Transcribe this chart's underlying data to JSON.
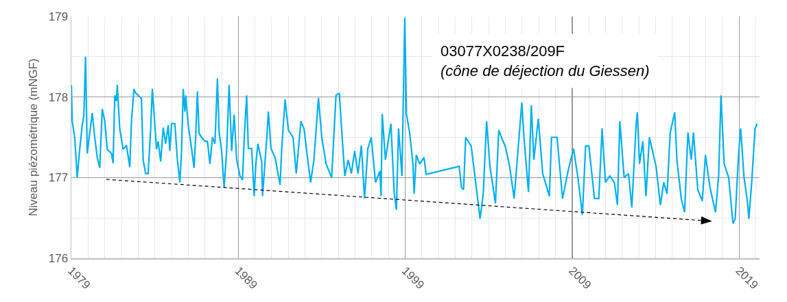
{
  "chart_data": {
    "type": "line",
    "ylabel": "Niveau piézométrique (mNGF)",
    "annotations": [
      "03077X0238/209F",
      "(cône de déjection du Giessen)"
    ],
    "xlim": [
      1979,
      2020.22
    ],
    "xticks": [
      1979,
      1989,
      1999,
      2009,
      2019
    ],
    "ylim": [
      176,
      179
    ],
    "yticks": [
      176,
      177,
      178,
      179
    ],
    "grid": true,
    "marker": "none",
    "line_style": "solid",
    "series": [
      {
        "color": "#00b0f0",
        "x": [
          1979.0,
          1979.05,
          1979.2,
          1979.35,
          1979.5,
          1979.65,
          1979.75,
          1979.85,
          1979.95,
          1980.1,
          1980.25,
          1980.4,
          1980.55,
          1980.7,
          1980.85,
          1981.0,
          1981.15,
          1981.4,
          1981.5,
          1981.6,
          1981.7,
          1981.75,
          1981.9,
          1982.1,
          1982.3,
          1982.5,
          1982.6,
          1982.75,
          1982.85,
          1983.2,
          1983.3,
          1983.45,
          1983.6,
          1983.75,
          1983.85,
          1983.95,
          1984.1,
          1984.2,
          1984.35,
          1984.5,
          1984.65,
          1984.8,
          1984.9,
          1985.0,
          1985.2,
          1985.35,
          1985.5,
          1985.6,
          1985.7,
          1985.8,
          1985.85,
          1986.0,
          1986.2,
          1986.35,
          1986.45,
          1986.55,
          1986.65,
          1986.8,
          1987.0,
          1987.15,
          1987.3,
          1987.45,
          1987.6,
          1987.75,
          1987.85,
          1988.0,
          1988.15,
          1988.3,
          1988.45,
          1988.6,
          1988.75,
          1988.9,
          1989.1,
          1989.25,
          1989.35,
          1989.5,
          1989.6,
          1989.8,
          1989.95,
          1990.05,
          1990.17,
          1990.4,
          1990.45,
          1990.7,
          1990.8,
          1990.96,
          1991.2,
          1991.5,
          1991.6,
          1991.8,
          1992.0,
          1992.28,
          1992.47,
          1992.75,
          1992.94,
          1993.14,
          1993.33,
          1993.53,
          1993.8,
          1994.0,
          1994.26,
          1994.59,
          1994.85,
          1995.05,
          1995.18,
          1995.38,
          1995.58,
          1995.77,
          1995.97,
          1996.17,
          1996.37,
          1996.56,
          1996.76,
          1996.96,
          1997.22,
          1997.48,
          1997.55,
          1997.62,
          1997.81,
          1998.14,
          1998.34,
          1998.47,
          1998.6,
          1998.8,
          1998.97,
          1999.07,
          1999.26,
          1999.46,
          1999.53,
          1999.66,
          1999.86,
          2000.12,
          2000.25,
          2002.23,
          2002.36,
          2002.49,
          2002.62,
          2002.95,
          2003.35,
          2003.48,
          2003.67,
          2003.87,
          2004.07,
          2004.4,
          2004.6,
          2004.8,
          2004.99,
          2005.25,
          2005.52,
          2005.98,
          2006.11,
          2006.38,
          2006.55,
          2006.7,
          2006.97,
          2007.23,
          2007.63,
          2007.76,
          2008.09,
          2008.42,
          2008.75,
          2009.08,
          2009.34,
          2009.61,
          2009.8,
          2010.0,
          2010.33,
          2010.59,
          2010.79,
          2010.99,
          2011.25,
          2011.52,
          2011.71,
          2011.85,
          2012.11,
          2012.37,
          2012.57,
          2012.83,
          2012.9,
          2013.03,
          2013.23,
          2013.42,
          2013.62,
          2014.02,
          2014.28,
          2014.48,
          2014.68,
          2014.87,
          2015.14,
          2015.27,
          2015.53,
          2015.73,
          2015.93,
          2016.13,
          2016.26,
          2016.52,
          2016.79,
          2016.98,
          2017.25,
          2017.58,
          2017.77,
          2017.91,
          2018.1,
          2018.37,
          2018.63,
          2018.76,
          2018.96,
          2019.09,
          2019.29,
          2019.49,
          2019.58,
          2019.75,
          2019.95,
          2020.08
        ],
        "values": [
          178.15,
          177.7,
          177.5,
          177.0,
          177.35,
          177.65,
          177.77,
          178.5,
          177.3,
          177.55,
          177.8,
          177.5,
          177.25,
          177.12,
          177.85,
          177.7,
          177.35,
          177.3,
          177.18,
          178.02,
          177.95,
          178.15,
          177.6,
          177.35,
          177.4,
          177.13,
          177.7,
          178.1,
          178.05,
          177.98,
          177.22,
          177.05,
          177.05,
          177.6,
          178.1,
          177.8,
          177.35,
          177.45,
          177.2,
          177.62,
          177.42,
          177.65,
          177.33,
          177.67,
          177.67,
          177.22,
          176.94,
          177.33,
          178.1,
          177.82,
          178.02,
          177.65,
          177.36,
          177.12,
          177.53,
          178.07,
          177.55,
          177.5,
          177.45,
          177.45,
          177.17,
          177.5,
          177.42,
          178.23,
          177.56,
          177.33,
          176.88,
          177.33,
          178.15,
          177.33,
          177.78,
          177.22,
          177.02,
          176.97,
          177.48,
          178.02,
          177.36,
          177.36,
          176.77,
          177.17,
          177.42,
          177.2,
          176.77,
          177.48,
          177.82,
          177.36,
          177.25,
          176.91,
          177.36,
          177.97,
          177.59,
          177.5,
          177.05,
          177.7,
          177.6,
          177.25,
          176.94,
          177.22,
          177.99,
          177.5,
          177.17,
          177.0,
          178.02,
          178.05,
          177.62,
          177.02,
          177.22,
          177.05,
          177.33,
          177.05,
          177.4,
          176.74,
          177.36,
          177.5,
          176.94,
          177.08,
          176.77,
          177.79,
          177.22,
          177.67,
          176.8,
          176.6,
          177.61,
          177.02,
          178.98,
          177.79,
          177.56,
          177.17,
          176.8,
          177.28,
          177.17,
          177.25,
          177.04,
          177.14,
          176.88,
          176.85,
          177.5,
          177.39,
          176.71,
          176.49,
          176.8,
          177.7,
          177.14,
          176.68,
          177.59,
          177.48,
          177.39,
          177.14,
          176.74,
          177.93,
          177.5,
          176.82,
          177.9,
          177.22,
          177.73,
          177.05,
          176.77,
          177.5,
          177.5,
          176.74,
          177.08,
          177.36,
          177.0,
          176.54,
          177.39,
          177.39,
          176.74,
          176.74,
          177.61,
          176.94,
          177.02,
          176.94,
          176.66,
          177.7,
          177.0,
          177.05,
          176.63,
          177.67,
          177.81,
          177.17,
          177.45,
          176.77,
          177.5,
          177.14,
          176.66,
          176.94,
          176.8,
          177.56,
          177.81,
          177.22,
          176.74,
          176.57,
          177.56,
          177.22,
          177.56,
          176.85,
          176.71,
          177.28,
          176.88,
          176.57,
          177.02,
          178.02,
          177.17,
          177.0,
          176.43,
          176.49,
          177.28,
          177.61,
          177.0,
          176.71,
          176.49,
          176.94,
          177.61,
          177.67
        ]
      }
    ]
  }
}
